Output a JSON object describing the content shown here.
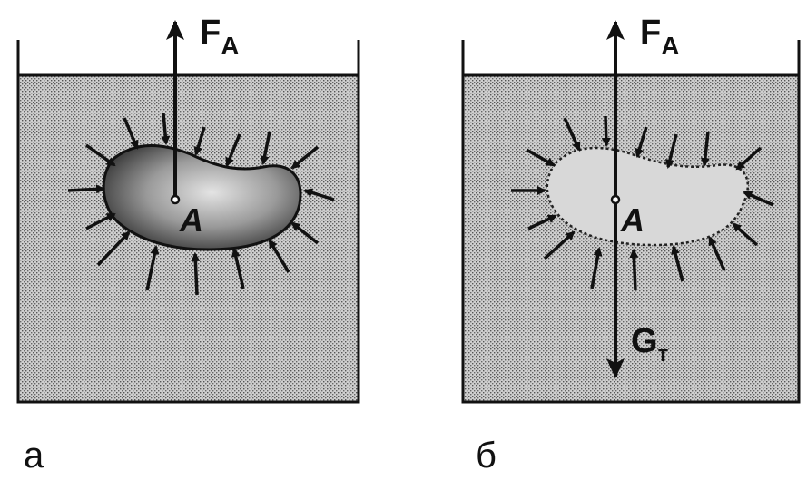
{
  "panels": [
    {
      "id": "a",
      "caption": "а",
      "force_up_label": "F",
      "force_up_subscript": "A",
      "point_label": "A"
    },
    {
      "id": "b",
      "caption": "б",
      "force_up_label": "F",
      "force_up_subscript": "A",
      "point_label": "A",
      "force_down_label": "G",
      "force_down_subscript": "т"
    }
  ]
}
